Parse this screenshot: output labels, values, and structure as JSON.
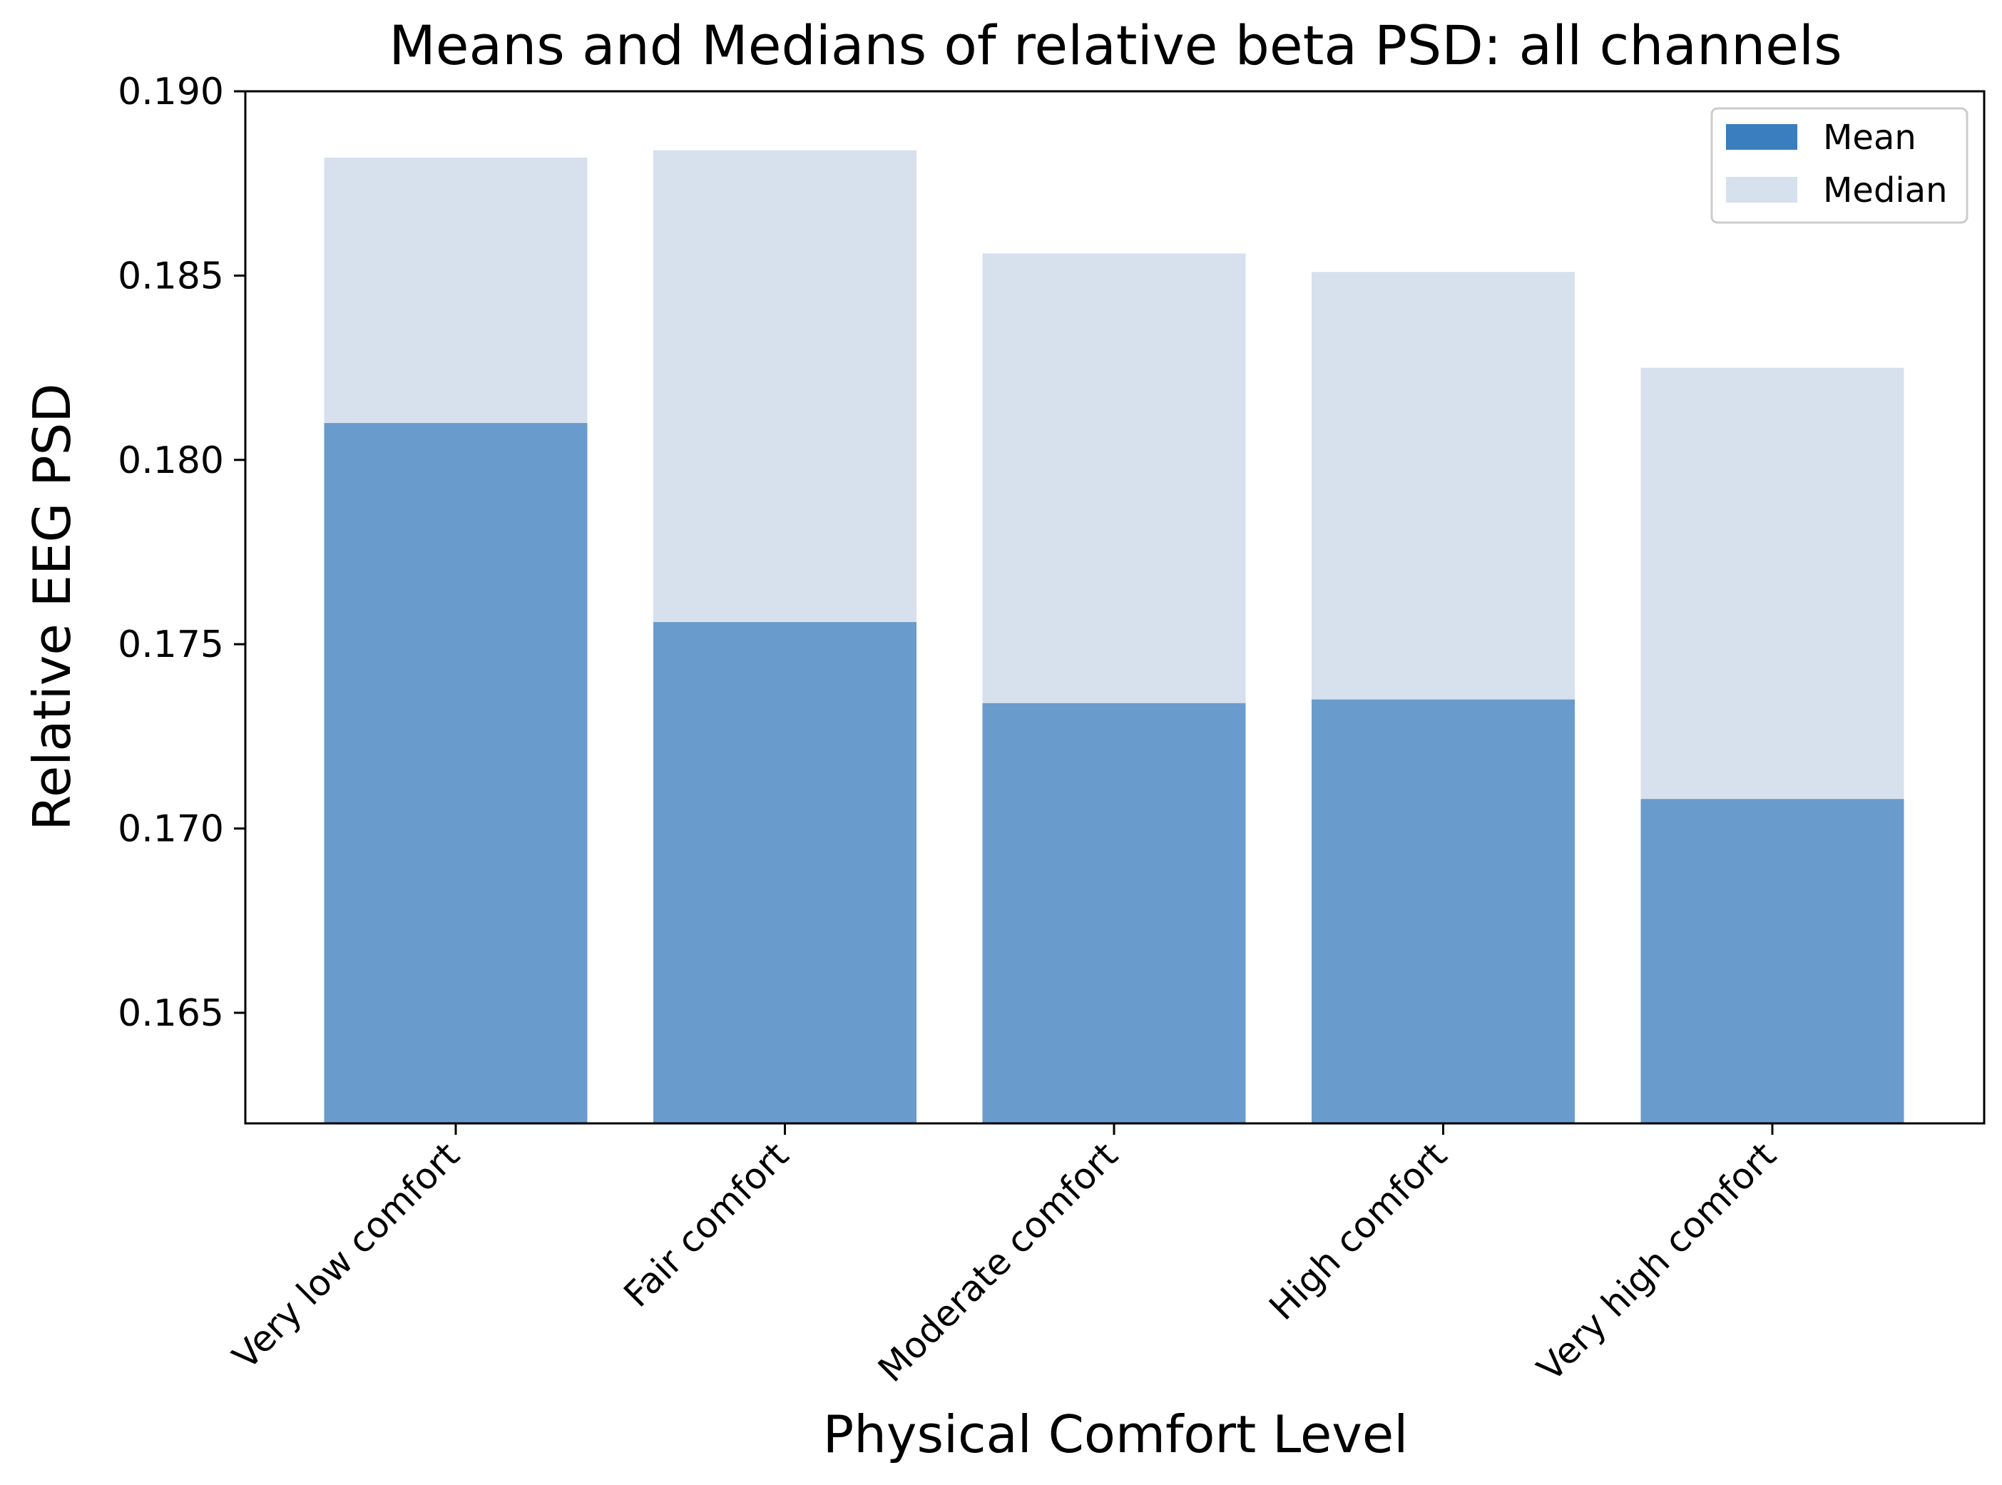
{
  "chart_data": {
    "type": "bar",
    "title": "Means and Medians of relative beta PSD: all channels",
    "xlabel": "Physical Comfort Level",
    "ylabel": "Relative EEG PSD",
    "categories": [
      "Very low comfort",
      "Fair comfort",
      "Moderate comfort",
      "High comfort",
      "Very high comfort"
    ],
    "series": [
      {
        "name": "Mean",
        "values": [
          0.181,
          0.1756,
          0.1734,
          0.1735,
          0.1708
        ],
        "color": "#3a7ebf",
        "opacity": 0.7
      },
      {
        "name": "Median",
        "values": [
          0.1882,
          0.1884,
          0.1856,
          0.1851,
          0.1825
        ],
        "color": "#d7e0ed",
        "opacity": 1.0
      }
    ],
    "ylim": [
      0.162,
      0.19
    ],
    "yticks": [
      0.165,
      0.17,
      0.175,
      0.18,
      0.185,
      0.19
    ],
    "ytick_labels": [
      "0.165",
      "0.170",
      "0.175",
      "0.180",
      "0.185",
      "0.190"
    ],
    "legend": {
      "position": "top-right",
      "entries": [
        "Mean",
        "Median"
      ]
    },
    "grid": false
  }
}
